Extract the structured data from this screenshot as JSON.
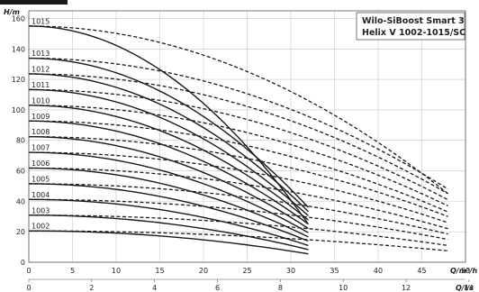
{
  "chart_data": {
    "type": "line",
    "title": "Wilo-SiBoost Smart 3\nHelix V 1002-1015/SC",
    "ylabel": "H/m",
    "xlabel": "Q/m³/h",
    "xlabel2": "Q/l/s",
    "xlim": [
      0,
      50
    ],
    "ylim": [
      0,
      165
    ],
    "xticks": [
      0,
      5,
      10,
      15,
      20,
      25,
      30,
      35,
      40,
      45,
      50
    ],
    "xticks2": [
      0,
      2,
      4,
      6,
      8,
      10,
      12,
      14
    ],
    "yticks": [
      0,
      20,
      40,
      60,
      80,
      100,
      120,
      140,
      160
    ],
    "grid": true,
    "series": [
      {
        "name": "1002",
        "shutoff": 20.6,
        "end_solid": 5.5,
        "end_dashed": 7.5
      },
      {
        "name": "1003",
        "shutoff": 30.9,
        "end_solid": 8.3,
        "end_dashed": 11
      },
      {
        "name": "1004",
        "shutoff": 41.2,
        "end_solid": 11,
        "end_dashed": 15
      },
      {
        "name": "1005",
        "shutoff": 51.5,
        "end_solid": 13.9,
        "end_dashed": 18.5
      },
      {
        "name": "1006",
        "shutoff": 61.8,
        "end_solid": 16.6,
        "end_dashed": 22
      },
      {
        "name": "1007",
        "shutoff": 72.1,
        "end_solid": 19.4,
        "end_dashed": 26
      },
      {
        "name": "1008",
        "shutoff": 82.4,
        "end_solid": 22.2,
        "end_dashed": 30
      },
      {
        "name": "1009",
        "shutoff": 92.7,
        "end_solid": 25,
        "end_dashed": 33
      },
      {
        "name": "1010",
        "shutoff": 103,
        "end_solid": 27.7,
        "end_dashed": 37
      },
      {
        "name": "1011",
        "shutoff": 113.3,
        "end_solid": 30.5,
        "end_dashed": 41
      },
      {
        "name": "1012",
        "shutoff": 123.6,
        "end_solid": 33.3,
        "end_dashed": 45
      },
      {
        "name": "1013",
        "shutoff": 133.9,
        "end_solid": 36,
        "end_dashed": 48
      },
      {
        "name": "1015",
        "shutoff": 155,
        "end_solid": 25,
        "end_dashed": 45
      }
    ],
    "solid_end_q": 32,
    "dashed_end_q": 48
  }
}
